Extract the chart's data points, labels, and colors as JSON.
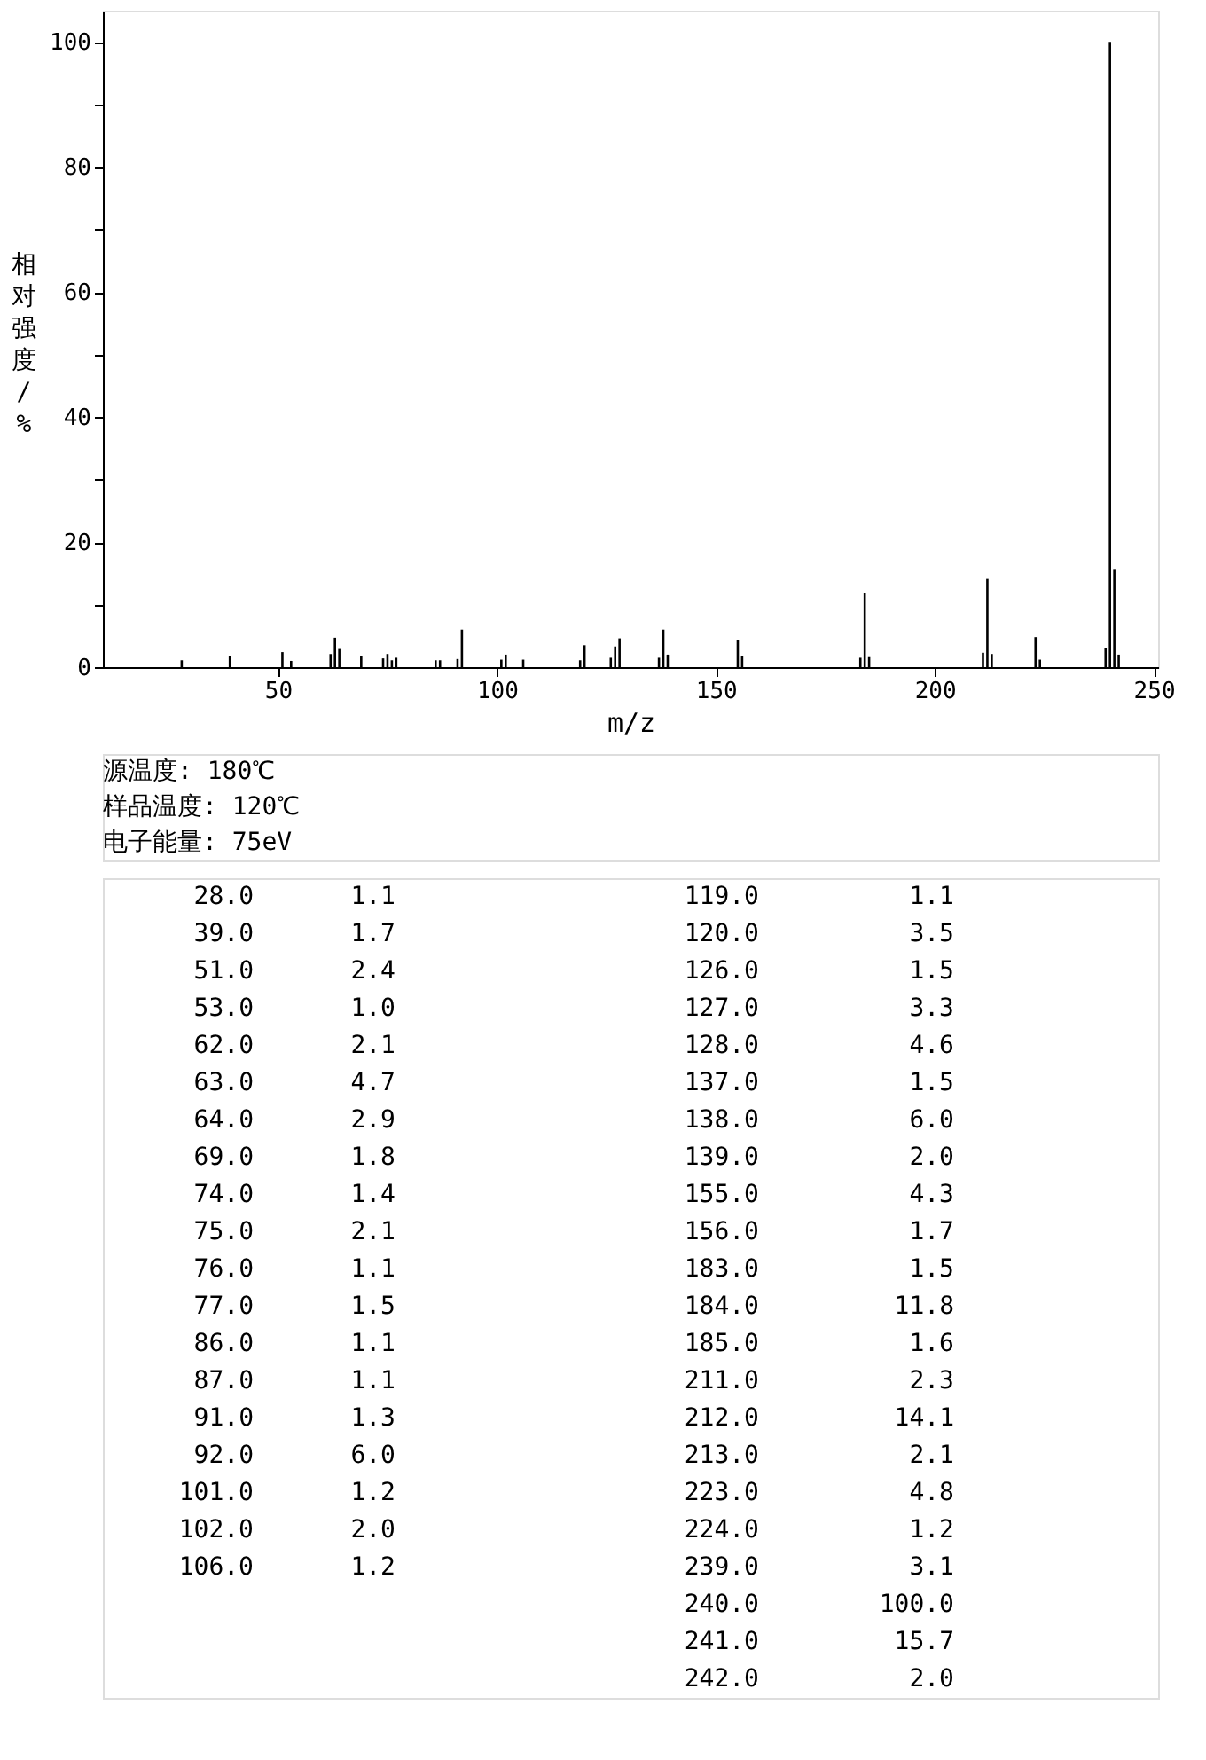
{
  "chart_data": [
    {
      "type": "bar",
      "xlabel": "m/z",
      "ylabel": "相对强度/%",
      "x": [
        28.0,
        39.0,
        51.0,
        53.0,
        62.0,
        63.0,
        64.0,
        69.0,
        74.0,
        75.0,
        76.0,
        77.0,
        86.0,
        87.0,
        91.0,
        92.0,
        101.0,
        102.0,
        106.0,
        119.0,
        120.0,
        126.0,
        127.0,
        128.0,
        137.0,
        138.0,
        139.0,
        155.0,
        156.0,
        183.0,
        184.0,
        185.0,
        211.0,
        212.0,
        213.0,
        223.0,
        224.0,
        239.0,
        240.0,
        241.0,
        242.0
      ],
      "values": [
        1.1,
        1.7,
        2.4,
        1.0,
        2.1,
        4.7,
        2.9,
        1.8,
        1.4,
        2.1,
        1.1,
        1.5,
        1.1,
        1.1,
        1.3,
        6.0,
        1.2,
        2.0,
        1.2,
        1.1,
        3.5,
        1.5,
        3.3,
        4.6,
        1.5,
        6.0,
        2.0,
        4.3,
        1.7,
        1.5,
        11.8,
        1.6,
        2.3,
        14.1,
        2.1,
        4.8,
        1.2,
        3.1,
        100.0,
        15.7,
        2.0
      ],
      "color": "#000000",
      "xlim": [
        10,
        251
      ],
      "xticks": [
        50,
        100,
        150,
        200,
        250
      ],
      "ylim": [
        0,
        105
      ],
      "yticks": [
        0,
        {
          "value": 10,
          "label": null
        },
        20,
        {
          "value": 30,
          "label": null
        },
        40,
        {
          "value": 50,
          "label": null
        },
        60,
        {
          "value": 70,
          "label": null
        },
        80,
        {
          "value": 90,
          "label": null
        },
        100
      ],
      "grid": false,
      "annotations": [
        "源温度: 180℃",
        "样品温度: 120℃",
        "电子能量: 75eV"
      ]
    },
    {
      "type": "other",
      "categories": [
        "28.0",
        "39.0",
        "51.0",
        "53.0",
        "62.0",
        "63.0",
        "64.0",
        "69.0",
        "74.0",
        "75.0",
        "76.0",
        "77.0",
        "86.0",
        "87.0",
        "91.0",
        "92.0",
        "101.0",
        "102.0",
        "106.0",
        "119.0",
        "120.0",
        "126.0",
        "127.0",
        "128.0",
        "137.0",
        "138.0",
        "139.0",
        "155.0",
        "156.0",
        "183.0",
        "184.0",
        "185.0",
        "211.0",
        "212.0",
        "213.0",
        "223.0",
        "224.0",
        "239.0",
        "240.0",
        "241.0",
        "242.0"
      ],
      "value_labels": [
        "1.1",
        "1.7",
        "2.4",
        "1.0",
        "2.1",
        "4.7",
        "2.9",
        "1.8",
        "1.4",
        "2.1",
        "1.1",
        "1.5",
        "1.1",
        "1.1",
        "1.3",
        "6.0",
        "1.2",
        "2.0",
        "1.2",
        "1.1",
        "3.5",
        "1.5",
        "3.3",
        "4.6",
        "1.5",
        "6.0",
        "2.0",
        "4.3",
        "1.7",
        "1.5",
        "11.8",
        "1.6",
        "2.3",
        "14.1",
        "2.1",
        "4.8",
        "1.2",
        "3.1",
        "100.0",
        "15.7",
        "2.0"
      ]
    }
  ]
}
